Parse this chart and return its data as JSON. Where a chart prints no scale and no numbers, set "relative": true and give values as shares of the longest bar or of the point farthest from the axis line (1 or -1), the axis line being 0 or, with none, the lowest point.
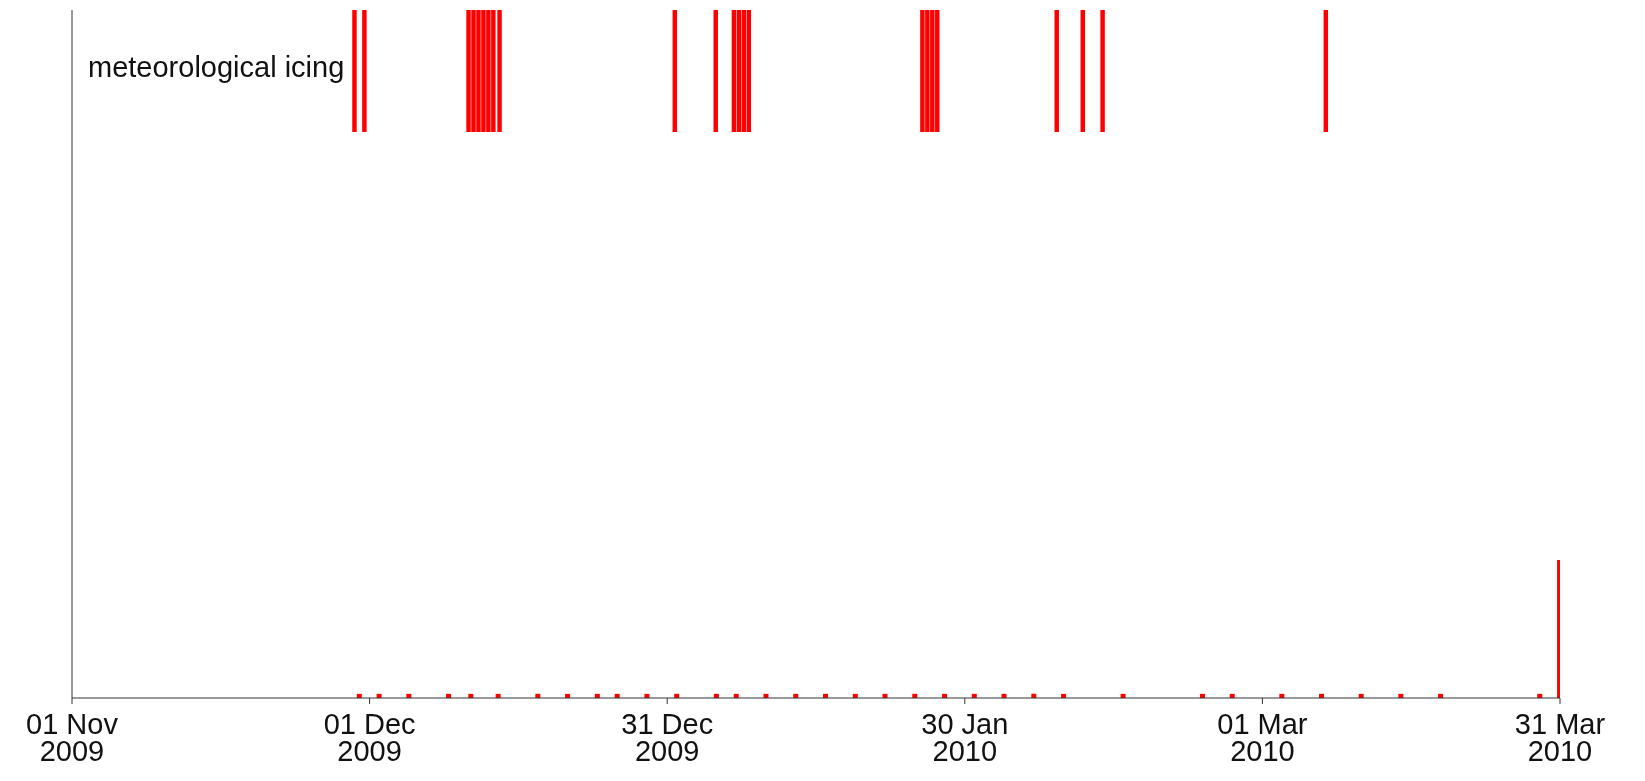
{
  "chart_data": [
    {
      "type": "bar",
      "relative": true,
      "color": "#ff0000",
      "annotations": [
        "meteorological icing"
      ],
      "xlim": [
        "2009-11-01",
        "2010-03-31"
      ],
      "x": [
        "2009-11-29T12:00",
        "2009-11-30T12:00",
        "2009-12-11T00:00",
        "2009-12-11T12:00",
        "2009-12-12T00:00",
        "2009-12-12T12:00",
        "2009-12-13T00:00",
        "2009-12-13T12:00",
        "2009-12-14T03:00",
        "2009-12-31T19:00",
        "2010-01-04T22:00",
        "2010-01-06T18:00",
        "2010-01-07T06:00",
        "2010-01-07T18:00",
        "2010-01-08T06:00",
        "2010-01-25T18:00",
        "2010-01-26T06:00",
        "2010-01-26T18:00",
        "2010-01-27T06:00",
        "2010-02-08T07:00",
        "2010-02-10T22:00",
        "2010-02-12T22:00",
        "2010-03-07T10:00"
      ],
      "values": [
        1,
        1,
        1,
        1,
        1,
        1,
        1,
        1,
        1,
        1,
        1,
        1,
        1,
        1,
        1,
        1,
        1,
        1,
        1,
        1,
        1,
        1,
        1
      ]
    },
    {
      "type": "bar",
      "relative": true,
      "color": "#ff0000",
      "xlim": [
        "2009-11-01",
        "2010-03-31"
      ],
      "xticks": [
        {
          "value": "2009-11-01",
          "label": "01 Nov\n2009"
        },
        {
          "value": "2009-12-01",
          "label": "01 Dec\n2009"
        },
        {
          "value": "2009-12-31",
          "label": "31 Dec\n2009"
        },
        {
          "value": "2010-01-30",
          "label": "30 Jan\n2010"
        },
        {
          "value": "2010-03-01",
          "label": "01 Mar\n2010"
        },
        {
          "value": "2010-03-31",
          "label": "31 Mar\n2010"
        }
      ],
      "x": [
        "2009-11-30",
        "2009-12-02",
        "2009-12-05",
        "2009-12-09",
        "2009-12-11T06:00",
        "2009-12-14",
        "2009-12-18",
        "2009-12-21",
        "2009-12-24",
        "2009-12-26",
        "2009-12-29",
        "2010-01-01",
        "2010-01-05",
        "2010-01-07",
        "2010-01-10",
        "2010-01-13",
        "2010-01-16",
        "2010-01-19",
        "2010-01-22",
        "2010-01-25",
        "2010-01-28",
        "2010-01-31",
        "2010-02-03",
        "2010-02-06",
        "2010-02-09",
        "2010-02-15",
        "2010-02-23",
        "2010-02-26",
        "2010-03-03",
        "2010-03-07",
        "2010-03-11",
        "2010-03-15",
        "2010-03-19",
        "2010-03-29",
        "2010-03-31"
      ],
      "values": [
        0.03,
        0.03,
        0.03,
        0.03,
        0.03,
        0.03,
        0.03,
        0.03,
        0.03,
        0.03,
        0.03,
        0.03,
        0.03,
        0.03,
        0.03,
        0.03,
        0.03,
        0.03,
        0.03,
        0.03,
        0.03,
        0.03,
        0.03,
        0.03,
        0.03,
        0.03,
        0.03,
        0.03,
        0.03,
        0.03,
        0.03,
        0.03,
        0.03,
        0.03,
        1
      ]
    }
  ]
}
